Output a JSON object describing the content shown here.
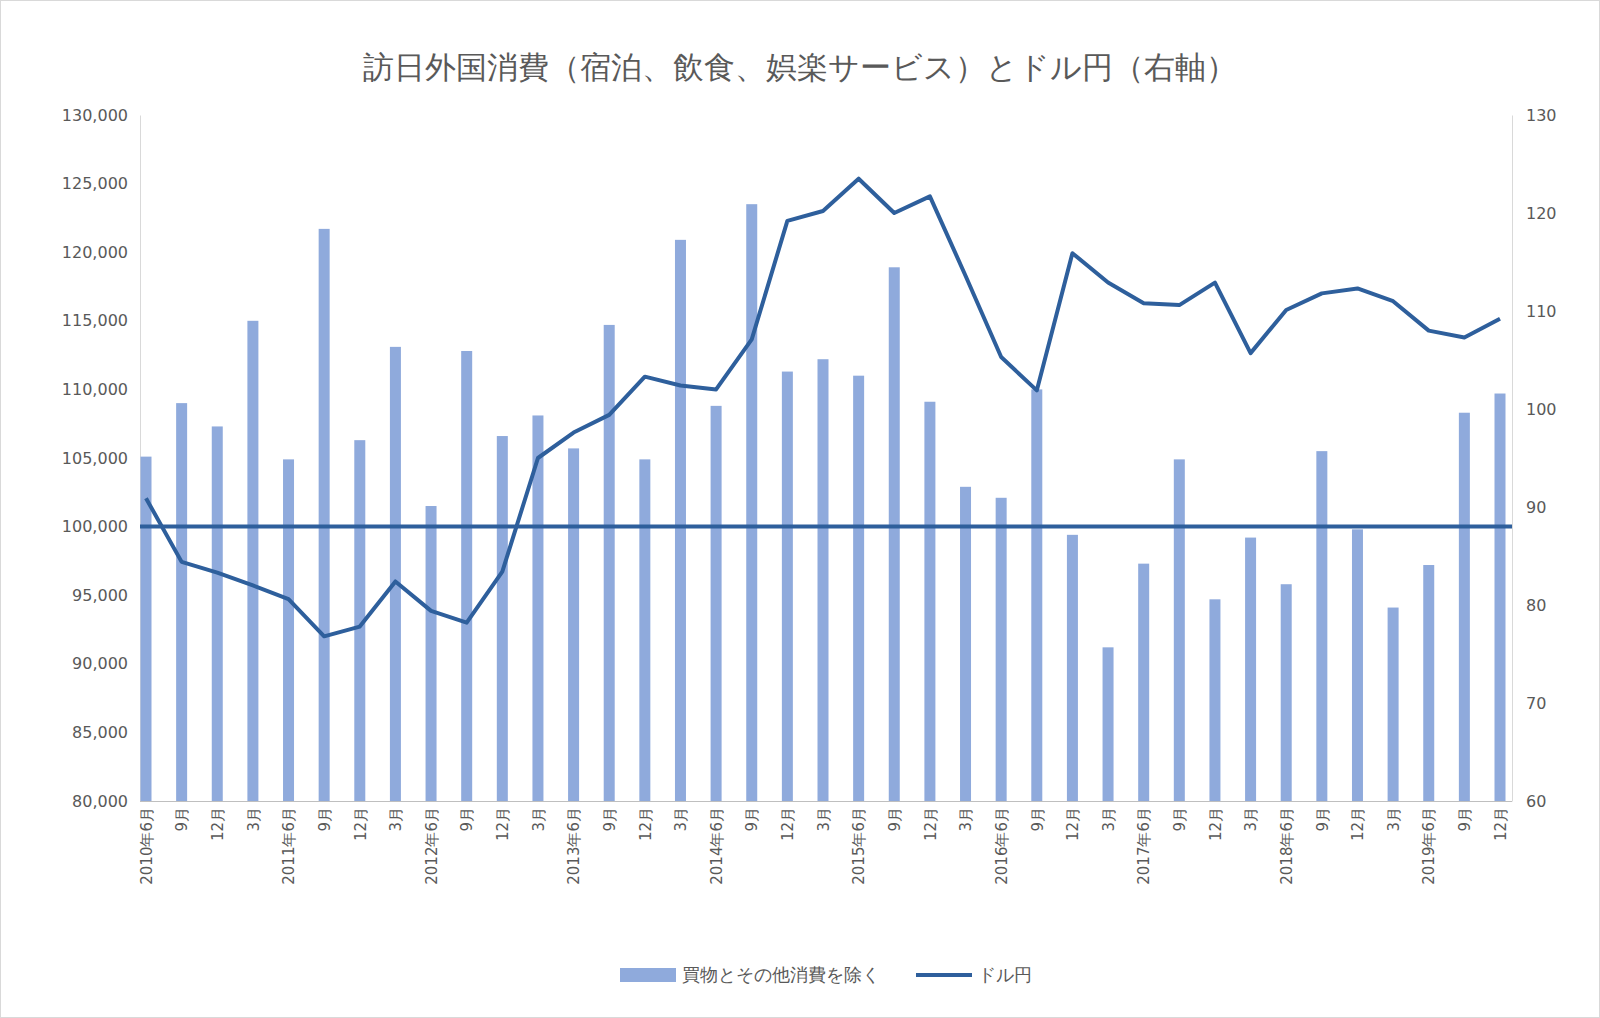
{
  "chart_data": {
    "type": "bar",
    "title": "訪日外国消費（宿泊、飲食、娯楽サービス）とドル円（右軸）",
    "categories": [
      "2010年6月",
      "9月",
      "12月",
      "3月",
      "2011年6月",
      "9月",
      "12月",
      "3月",
      "2012年6月",
      "9月",
      "12月",
      "3月",
      "2013年6月",
      "9月",
      "12月",
      "3月",
      "2014年6月",
      "9月",
      "12月",
      "3月",
      "2015年6月",
      "9月",
      "12月",
      "3月",
      "2016年6月",
      "9月",
      "12月",
      "3月",
      "2017年6月",
      "9月",
      "12月",
      "3月",
      "2018年6月",
      "9月",
      "12月",
      "3月",
      "2019年6月",
      "9月",
      "12月"
    ],
    "series": [
      {
        "name": "買物とその他消費を除く",
        "type": "bar",
        "color": "#8faadc",
        "values": [
          105100,
          109000,
          107300,
          115000,
          104900,
          121700,
          106300,
          113100,
          101500,
          112800,
          106600,
          108100,
          105700,
          114700,
          104900,
          120900,
          108800,
          123500,
          111300,
          112200,
          111000,
          118900,
          109100,
          102900,
          102100,
          110000,
          99400,
          91200,
          97300,
          104900,
          94700,
          99200,
          95800,
          105500,
          99800,
          94100,
          97200,
          108300,
          109700
        ]
      },
      {
        "name": "ドル円",
        "type": "line",
        "color": "#2e5f9c",
        "axis": "y2",
        "values": [
          90.9,
          84.4,
          83.3,
          82.0,
          80.6,
          76.8,
          77.8,
          82.4,
          79.4,
          78.2,
          83.4,
          95.0,
          97.6,
          99.4,
          103.3,
          102.4,
          102.0,
          107.1,
          119.2,
          120.2,
          123.5,
          120.0,
          121.7,
          113.6,
          105.3,
          101.9,
          115.9,
          112.9,
          110.8,
          110.6,
          112.9,
          105.7,
          110.1,
          111.8,
          112.3,
          111.0,
          108.0,
          107.3,
          109.2
        ]
      }
    ],
    "reference_line": 100000,
    "ylim": [
      80000,
      130000
    ],
    "yticks": [
      {
        "value": 80000,
        "label": "80,000"
      },
      {
        "value": 85000,
        "label": "85,000"
      },
      {
        "value": 90000,
        "label": "90,000"
      },
      {
        "value": 95000,
        "label": "95,000"
      },
      {
        "value": 100000,
        "label": "100,000"
      },
      {
        "value": 105000,
        "label": "105,000"
      },
      {
        "value": 110000,
        "label": "110,000"
      },
      {
        "value": 115000,
        "label": "115,000"
      },
      {
        "value": 120000,
        "label": "120,000"
      },
      {
        "value": 125000,
        "label": "125,000"
      },
      {
        "value": 130000,
        "label": "130,000"
      }
    ],
    "y2lim": [
      60,
      130
    ],
    "y2ticks": [
      60,
      70,
      80,
      90,
      100,
      110,
      120,
      130
    ],
    "grid": false,
    "legend": "bottom"
  }
}
